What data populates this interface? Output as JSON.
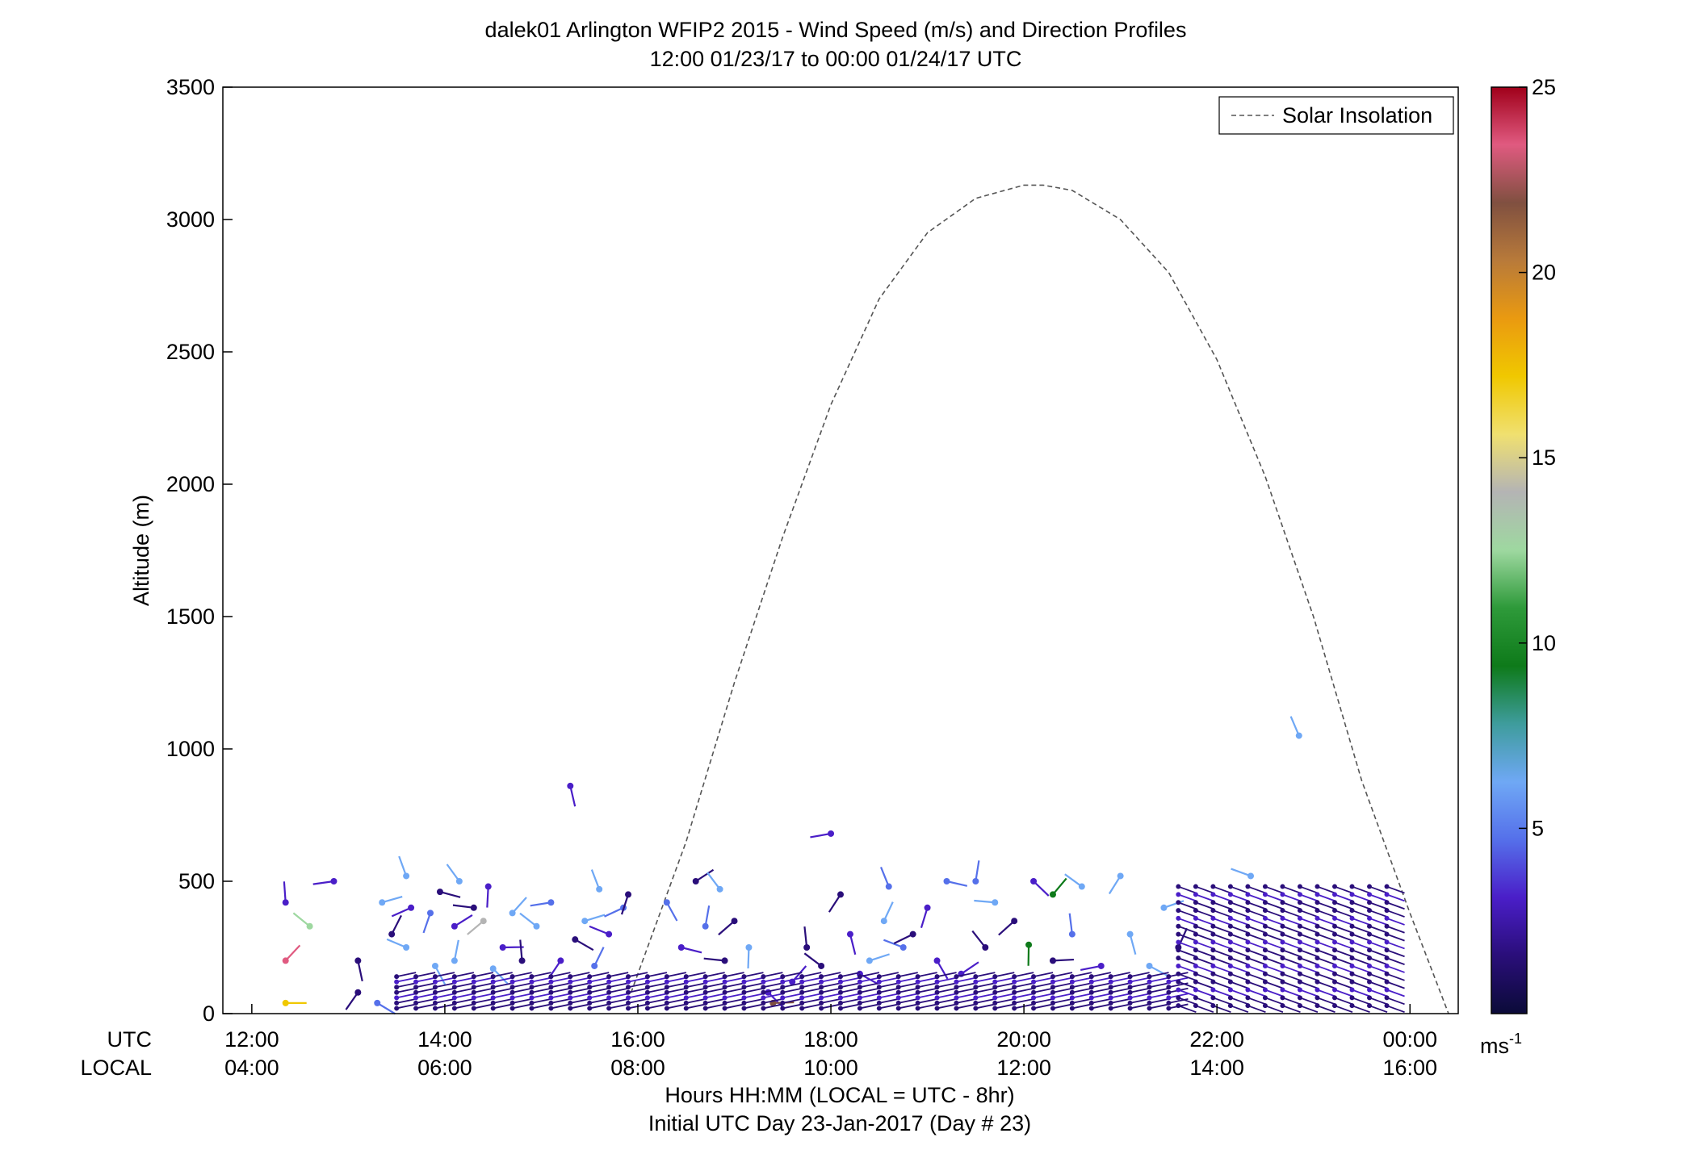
{
  "chart_data": {
    "type": "scatter",
    "title": "dalek01 Arlington WFIP2 2015 - Wind Speed (m/s) and Direction Profiles",
    "subtitle": "12:00 01/23/17 to 00:00 01/24/17  UTC",
    "ylabel": "Altitude (m)",
    "xlabel": "Hours HH:MM  (LOCAL = UTC - 8hr)",
    "xlabel2": "Initial UTC Day 23-Jan-2017 (Day # 23)",
    "xlim": [
      11.7,
      24.5
    ],
    "ylim": [
      0,
      3500
    ],
    "x_ticks": [
      12,
      14,
      16,
      18,
      20,
      22,
      24
    ],
    "x_tick_labels_utc": [
      "12:00",
      "14:00",
      "16:00",
      "18:00",
      "20:00",
      "22:00",
      "00:00"
    ],
    "x_tick_labels_local": [
      "04:00",
      "06:00",
      "08:00",
      "10:00",
      "12:00",
      "14:00",
      "16:00"
    ],
    "row_label_utc": "UTC",
    "row_label_local": "LOCAL",
    "y_ticks": [
      0,
      500,
      1000,
      1500,
      2000,
      2500,
      3000,
      3500
    ],
    "y_tick_labels": [
      "0",
      "500",
      "1000",
      "1500",
      "2000",
      "2500",
      "3000",
      "3500"
    ],
    "grid": false,
    "legend": {
      "position": "top-right",
      "entries": [
        "Solar Insolation"
      ]
    },
    "solar_insolation": {
      "x": [
        15.9,
        16.5,
        17,
        17.5,
        18,
        18.5,
        19,
        19.5,
        20,
        20.2,
        20.5,
        21,
        21.5,
        22,
        22.5,
        23,
        23.5,
        24,
        24.4
      ],
      "y": [
        50,
        650,
        1250,
        1800,
        2300,
        2700,
        2950,
        3080,
        3130,
        3130,
        3110,
        3000,
        2800,
        2470,
        2030,
        1500,
        880,
        380,
        0
      ]
    },
    "colorbar": {
      "min": 0,
      "max": 25,
      "ticks": [
        5,
        10,
        15,
        20,
        25
      ],
      "tick_labels": [
        "5",
        "10",
        "15",
        "20",
        "25"
      ],
      "unit_label": "ms",
      "unit_exponent": "-1",
      "colors": [
        "#0b0b38",
        "#2a0e7a",
        "#4a1ec8",
        "#5570ea",
        "#6fa8f5",
        "#3e9c9c",
        "#0e7a1a",
        "#2e9a3a",
        "#9ed8a0",
        "#b4b4b4",
        "#f0e070",
        "#f0c800",
        "#ea9a10",
        "#b87a3a",
        "#805040",
        "#e05a80",
        "#a0001a"
      ]
    },
    "wind_barbs": [
      {
        "t": 12.35,
        "alt": 40,
        "speed": 17
      },
      {
        "t": 12.35,
        "alt": 200,
        "speed": 24
      },
      {
        "t": 12.35,
        "alt": 420,
        "speed": 3
      },
      {
        "t": 12.6,
        "alt": 330,
        "speed": 12
      },
      {
        "t": 12.85,
        "alt": 500,
        "speed": 3
      },
      {
        "t": 13.1,
        "alt": 80,
        "speed": 2
      },
      {
        "t": 13.1,
        "alt": 200,
        "speed": 2
      },
      {
        "t": 13.3,
        "alt": 40,
        "speed": 4
      },
      {
        "t": 13.35,
        "alt": 420,
        "speed": 7
      },
      {
        "t": 13.45,
        "alt": 300,
        "speed": 2
      },
      {
        "t": 13.6,
        "alt": 520,
        "speed": 7
      },
      {
        "t": 13.6,
        "alt": 250,
        "speed": 7
      },
      {
        "t": 13.65,
        "alt": 400,
        "speed": 3
      },
      {
        "t": 13.85,
        "alt": 380,
        "speed": 4
      },
      {
        "t": 13.9,
        "alt": 180,
        "speed": 6
      },
      {
        "t": 13.95,
        "alt": 460,
        "speed": 2
      },
      {
        "t": 14.1,
        "alt": 330,
        "speed": 3
      },
      {
        "t": 14.1,
        "alt": 200,
        "speed": 7
      },
      {
        "t": 14.15,
        "alt": 500,
        "speed": 7
      },
      {
        "t": 14.3,
        "alt": 400,
        "speed": 2
      },
      {
        "t": 14.4,
        "alt": 350,
        "speed": 14
      },
      {
        "t": 14.45,
        "alt": 480,
        "speed": 3
      },
      {
        "t": 14.5,
        "alt": 170,
        "speed": 7
      },
      {
        "t": 14.6,
        "alt": 250,
        "speed": 3
      },
      {
        "t": 14.7,
        "alt": 380,
        "speed": 7
      },
      {
        "t": 14.8,
        "alt": 200,
        "speed": 2
      },
      {
        "t": 14.95,
        "alt": 330,
        "speed": 7
      },
      {
        "t": 15.1,
        "alt": 420,
        "speed": 5
      },
      {
        "t": 15.2,
        "alt": 200,
        "speed": 3
      },
      {
        "t": 15.3,
        "alt": 860,
        "speed": 3
      },
      {
        "t": 15.35,
        "alt": 280,
        "speed": 2
      },
      {
        "t": 15.45,
        "alt": 350,
        "speed": 7
      },
      {
        "t": 15.55,
        "alt": 180,
        "speed": 5
      },
      {
        "t": 15.6,
        "alt": 470,
        "speed": 7
      },
      {
        "t": 15.7,
        "alt": 300,
        "speed": 3
      },
      {
        "t": 15.85,
        "alt": 400,
        "speed": 5
      },
      {
        "t": 15.9,
        "alt": 450,
        "speed": 2
      },
      {
        "t": 16.3,
        "alt": 420,
        "speed": 5
      },
      {
        "t": 16.45,
        "alt": 250,
        "speed": 3
      },
      {
        "t": 16.6,
        "alt": 500,
        "speed": 2
      },
      {
        "t": 16.7,
        "alt": 330,
        "speed": 4
      },
      {
        "t": 16.85,
        "alt": 470,
        "speed": 7
      },
      {
        "t": 16.9,
        "alt": 200,
        "speed": 2
      },
      {
        "t": 17.0,
        "alt": 350,
        "speed": 2
      },
      {
        "t": 17.15,
        "alt": 250,
        "speed": 7
      },
      {
        "t": 17.35,
        "alt": 80,
        "speed": 3
      },
      {
        "t": 17.4,
        "alt": 40,
        "speed": 22
      },
      {
        "t": 17.6,
        "alt": 120,
        "speed": 3
      },
      {
        "t": 17.75,
        "alt": 250,
        "speed": 2
      },
      {
        "t": 17.9,
        "alt": 180,
        "speed": 2
      },
      {
        "t": 18.0,
        "alt": 680,
        "speed": 3
      },
      {
        "t": 18.1,
        "alt": 450,
        "speed": 2
      },
      {
        "t": 18.2,
        "alt": 300,
        "speed": 3
      },
      {
        "t": 18.3,
        "alt": 150,
        "speed": 3
      },
      {
        "t": 18.4,
        "alt": 200,
        "speed": 7
      },
      {
        "t": 18.55,
        "alt": 350,
        "speed": 7
      },
      {
        "t": 18.6,
        "alt": 480,
        "speed": 4
      },
      {
        "t": 18.75,
        "alt": 250,
        "speed": 5
      },
      {
        "t": 18.85,
        "alt": 300,
        "speed": 2
      },
      {
        "t": 19.0,
        "alt": 400,
        "speed": 3
      },
      {
        "t": 19.1,
        "alt": 200,
        "speed": 3
      },
      {
        "t": 19.2,
        "alt": 500,
        "speed": 4
      },
      {
        "t": 19.35,
        "alt": 150,
        "speed": 3
      },
      {
        "t": 19.5,
        "alt": 500,
        "speed": 5
      },
      {
        "t": 19.6,
        "alt": 250,
        "speed": 2
      },
      {
        "t": 19.7,
        "alt": 420,
        "speed": 7
      },
      {
        "t": 19.9,
        "alt": 350,
        "speed": 2
      },
      {
        "t": 20.05,
        "alt": 260,
        "speed": 9
      },
      {
        "t": 20.1,
        "alt": 500,
        "speed": 3
      },
      {
        "t": 20.3,
        "alt": 200,
        "speed": 2
      },
      {
        "t": 20.3,
        "alt": 450,
        "speed": 10
      },
      {
        "t": 20.5,
        "alt": 300,
        "speed": 5
      },
      {
        "t": 20.6,
        "alt": 480,
        "speed": 7
      },
      {
        "t": 20.8,
        "alt": 180,
        "speed": 3
      },
      {
        "t": 21.0,
        "alt": 520,
        "speed": 7
      },
      {
        "t": 21.1,
        "alt": 300,
        "speed": 7
      },
      {
        "t": 21.3,
        "alt": 180,
        "speed": 7
      },
      {
        "t": 21.45,
        "alt": 400,
        "speed": 7
      },
      {
        "t": 21.6,
        "alt": 250,
        "speed": 2
      },
      {
        "t": 22.85,
        "alt": 1050,
        "speed": 7
      },
      {
        "t": 22.35,
        "alt": 520,
        "speed": 7
      }
    ]
  }
}
